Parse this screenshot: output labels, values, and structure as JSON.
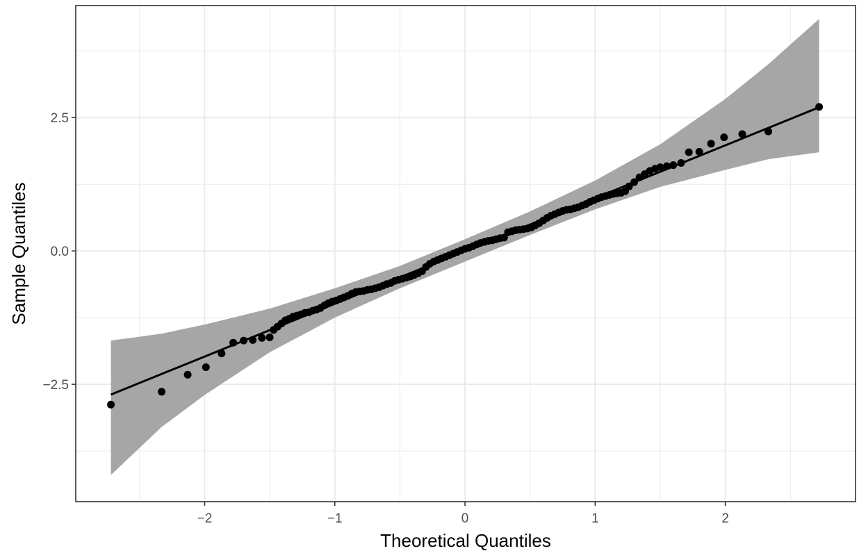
{
  "chart_data": {
    "type": "scatter",
    "xlabel": "Theoretical Quantiles",
    "ylabel": "Sample Quantiles",
    "xlim": [
      -2.99,
      3.0
    ],
    "ylim": [
      -4.7,
      4.6
    ],
    "x_ticks": [
      -2,
      -1,
      0,
      1,
      2
    ],
    "y_ticks": [
      -2.5,
      0.0,
      2.5
    ],
    "x_tick_labels": [
      "−2",
      "−1",
      "0",
      "1",
      "2"
    ],
    "y_tick_labels": [
      "−2.5",
      "0.0",
      "2.5"
    ],
    "grid": true,
    "legend": "none",
    "colors": {
      "points": "#000000",
      "reference_line": "#000000",
      "confidence_band": "#a6a6a6",
      "grid": "#ebebeb",
      "panel_border": "#333333"
    },
    "reference_line": {
      "intercept": 0.0,
      "slope": 0.99,
      "x_range": [
        -2.72,
        2.72
      ]
    },
    "confidence_band": {
      "x": [
        -2.72,
        -2.33,
        -2.0,
        -1.5,
        -1.0,
        -0.5,
        0.0,
        0.5,
        1.0,
        1.5,
        2.0,
        2.33,
        2.72
      ],
      "lower": [
        -4.2,
        -3.3,
        -2.7,
        -1.9,
        -1.25,
        -0.7,
        -0.2,
        0.3,
        0.78,
        1.2,
        1.52,
        1.72,
        1.85
      ],
      "upper": [
        -1.68,
        -1.55,
        -1.38,
        -1.08,
        -0.7,
        -0.28,
        0.22,
        0.74,
        1.32,
        2.0,
        2.85,
        3.5,
        4.35
      ]
    },
    "points": {
      "x": [
        -2.72,
        -2.33,
        -2.13,
        -1.99,
        -1.87,
        -1.78,
        -1.7,
        -1.63,
        -1.56,
        -1.5,
        -1.47,
        -1.44,
        -1.41,
        -1.38,
        -1.35,
        -1.32,
        -1.29,
        -1.26,
        -1.23,
        -1.2,
        -1.17,
        -1.14,
        -1.11,
        -1.08,
        -1.05,
        -1.02,
        -0.99,
        -0.96,
        -0.93,
        -0.9,
        -0.87,
        -0.84,
        -0.81,
        -0.78,
        -0.75,
        -0.72,
        -0.69,
        -0.66,
        -0.63,
        -0.6,
        -0.57,
        -0.54,
        -0.51,
        -0.48,
        -0.45,
        -0.42,
        -0.39,
        -0.36,
        -0.33,
        -0.3,
        -0.27,
        -0.24,
        -0.21,
        -0.18,
        -0.15,
        -0.12,
        -0.09,
        -0.06,
        -0.03,
        0.0,
        0.03,
        0.06,
        0.09,
        0.12,
        0.15,
        0.18,
        0.21,
        0.24,
        0.27,
        0.3,
        0.33,
        0.36,
        0.39,
        0.42,
        0.45,
        0.48,
        0.51,
        0.54,
        0.57,
        0.6,
        0.63,
        0.66,
        0.69,
        0.72,
        0.75,
        0.78,
        0.81,
        0.84,
        0.87,
        0.9,
        0.93,
        0.96,
        0.99,
        1.02,
        1.05,
        1.08,
        1.11,
        1.14,
        1.17,
        1.2,
        1.23,
        1.26,
        1.3,
        1.34,
        1.38,
        1.42,
        1.46,
        1.5,
        1.55,
        1.6,
        1.66,
        1.72,
        1.8,
        1.89,
        1.99,
        2.13,
        2.33,
        2.72
      ],
      "y": [
        -2.88,
        -2.64,
        -2.32,
        -2.18,
        -1.92,
        -1.72,
        -1.68,
        -1.67,
        -1.63,
        -1.62,
        -1.48,
        -1.42,
        -1.36,
        -1.3,
        -1.27,
        -1.23,
        -1.21,
        -1.19,
        -1.16,
        -1.15,
        -1.12,
        -1.1,
        -1.07,
        -1.02,
        -0.98,
        -0.95,
        -0.93,
        -0.9,
        -0.87,
        -0.84,
        -0.8,
        -0.77,
        -0.76,
        -0.75,
        -0.73,
        -0.72,
        -0.7,
        -0.68,
        -0.65,
        -0.62,
        -0.6,
        -0.56,
        -0.54,
        -0.52,
        -0.5,
        -0.48,
        -0.45,
        -0.42,
        -0.38,
        -0.3,
        -0.24,
        -0.2,
        -0.17,
        -0.14,
        -0.11,
        -0.08,
        -0.05,
        -0.02,
        0.01,
        0.04,
        0.06,
        0.09,
        0.12,
        0.15,
        0.17,
        0.19,
        0.2,
        0.22,
        0.24,
        0.25,
        0.35,
        0.37,
        0.39,
        0.4,
        0.41,
        0.42,
        0.44,
        0.48,
        0.52,
        0.57,
        0.62,
        0.66,
        0.69,
        0.72,
        0.75,
        0.77,
        0.78,
        0.8,
        0.82,
        0.85,
        0.88,
        0.92,
        0.95,
        0.98,
        1.01,
        1.03,
        1.05,
        1.07,
        1.08,
        1.09,
        1.12,
        1.21,
        1.29,
        1.38,
        1.44,
        1.5,
        1.54,
        1.57,
        1.59,
        1.61,
        1.65,
        1.85,
        1.86,
        2.01,
        2.13,
        2.19,
        2.24,
        2.7
      ]
    }
  }
}
